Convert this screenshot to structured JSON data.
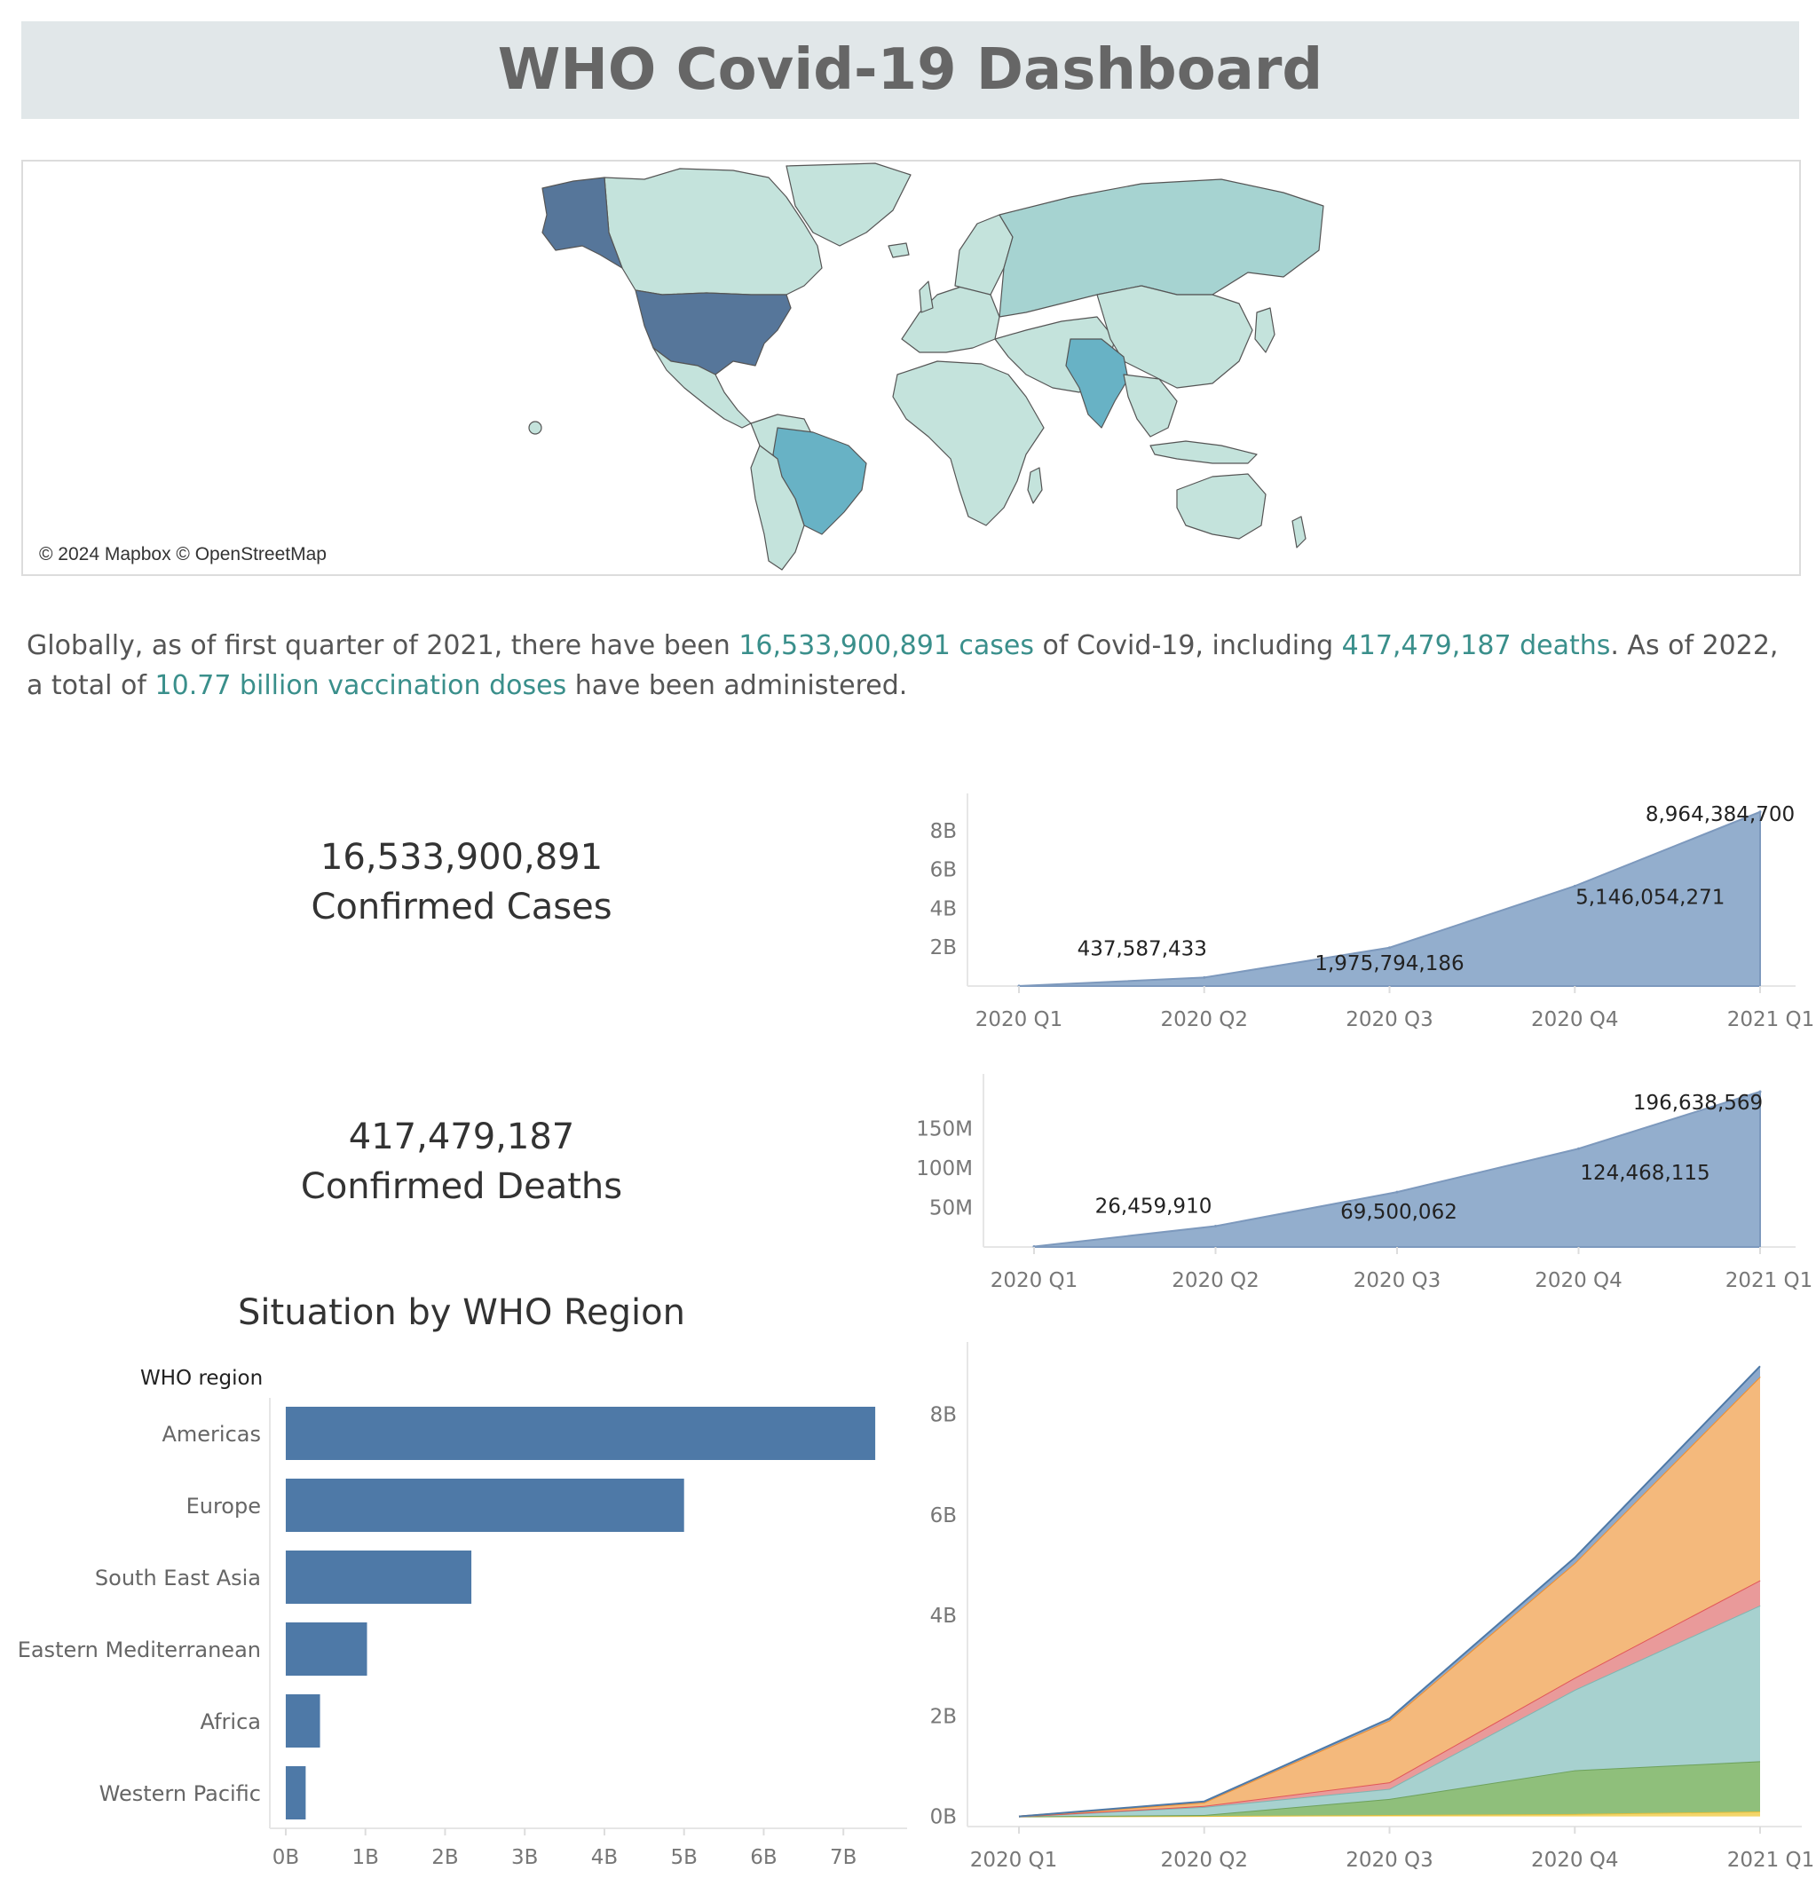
{
  "header": {
    "title": "WHO Covid-19 Dashboard"
  },
  "map": {
    "attribution": "© 2024 Mapbox © OpenStreetMap",
    "colors": {
      "low": "#c4e3dc",
      "mid": "#a6d3d1",
      "high": "#68b2c5",
      "top": "#56769a",
      "border": "#555555"
    }
  },
  "summary": {
    "p1": "Globally, as of first quarter of 2021, there have been ",
    "cases": "16,533,900,891 cases",
    "p2": " of Covid-19, including ",
    "deaths": "417,479,187 deaths",
    "p3": ". As of 2022, a total of ",
    "doses": "10.77 billion vaccination doses",
    "p4": " have been administered."
  },
  "kpis": {
    "cases": {
      "value": "16,533,900,891",
      "label": "Confirmed Cases"
    },
    "deaths": {
      "value": "417,479,187",
      "label": "Confirmed Deaths"
    }
  },
  "region_section": {
    "title": "Situation by WHO Region",
    "axis_header": "WHO region"
  },
  "chart_data": [
    {
      "id": "cases-area",
      "type": "area",
      "x": [
        "2020 Q1",
        "2020 Q2",
        "2020 Q3",
        "2020 Q4",
        "2021 Q1"
      ],
      "values": [
        3000000,
        437587433,
        1975794186,
        5146054271,
        8964384700
      ],
      "data_labels": [
        "",
        "437,587,433",
        "1,975,794,186",
        "5,146,054,271",
        "8,964,384,700"
      ],
      "yticks": [
        2000000000,
        4000000000,
        6000000000,
        8000000000
      ],
      "ytick_labels": [
        "2B",
        "4B",
        "6B",
        "8B"
      ],
      "ylim": [
        0,
        9000000000
      ],
      "color": "#93aecd"
    },
    {
      "id": "deaths-area",
      "type": "area",
      "x": [
        "2020 Q1",
        "2020 Q2",
        "2020 Q3",
        "2020 Q4",
        "2021 Q1"
      ],
      "values": [
        500000,
        26459910,
        69500062,
        124468115,
        196638569
      ],
      "data_labels": [
        "",
        "26,459,910",
        "69,500,062",
        "124,468,115",
        "196,638,569"
      ],
      "yticks": [
        50000000,
        100000000,
        150000000
      ],
      "ytick_labels": [
        "50M",
        "100M",
        "150M"
      ],
      "ylim": [
        0,
        196638569
      ],
      "color": "#93aecd"
    },
    {
      "id": "region-bars",
      "type": "bar",
      "orientation": "horizontal",
      "categories": [
        "Americas",
        "Europe",
        "South East Asia",
        "Eastern Mediterranean",
        "Africa",
        "Western Pacific"
      ],
      "values": [
        7.4,
        5.0,
        2.33,
        1.02,
        0.43,
        0.25
      ],
      "unit": "B",
      "xticks": [
        0,
        1,
        2,
        3,
        4,
        5,
        6,
        7
      ],
      "xtick_labels": [
        "0B",
        "1B",
        "2B",
        "3B",
        "4B",
        "5B",
        "6B",
        "7B"
      ],
      "xlim": [
        -0.2,
        7.8
      ],
      "color": "#4e79a7"
    },
    {
      "id": "region-stacked-area",
      "type": "area",
      "stacked": true,
      "x": [
        "2020 Q1",
        "2020 Q2",
        "2020 Q3",
        "2020 Q4",
        "2021 Q1"
      ],
      "series": [
        {
          "values": [
            0,
            0.01,
            0.03,
            0.05,
            0.1
          ],
          "color": "#f3d56a",
          "line": "#e4bf3d"
        },
        {
          "values": [
            0,
            0.02,
            0.32,
            0.87,
            1.0
          ],
          "color": "#8fbf7b",
          "line": "#6da15b"
        },
        {
          "values": [
            0,
            0.16,
            0.2,
            1.6,
            3.1
          ],
          "color": "#a7d1cf",
          "line": "#7fb5b1"
        },
        {
          "values": [
            0,
            0.02,
            0.13,
            0.24,
            0.5
          ],
          "color": "#e99a9a",
          "line": "#e15759"
        },
        {
          "values": [
            0,
            0.07,
            1.23,
            2.28,
            4.05
          ],
          "color": "#f4b97c",
          "line": "#f28e2b"
        },
        {
          "values": [
            0,
            0.02,
            0.04,
            0.11,
            0.21
          ],
          "color": "#8da9cc",
          "line": "#4e79a7"
        }
      ],
      "yticks": [
        0,
        2,
        4,
        6,
        8
      ],
      "ytick_labels": [
        "0B",
        "2B",
        "4B",
        "6B",
        "8B"
      ],
      "ylim": [
        -0.2,
        9.0
      ]
    }
  ]
}
